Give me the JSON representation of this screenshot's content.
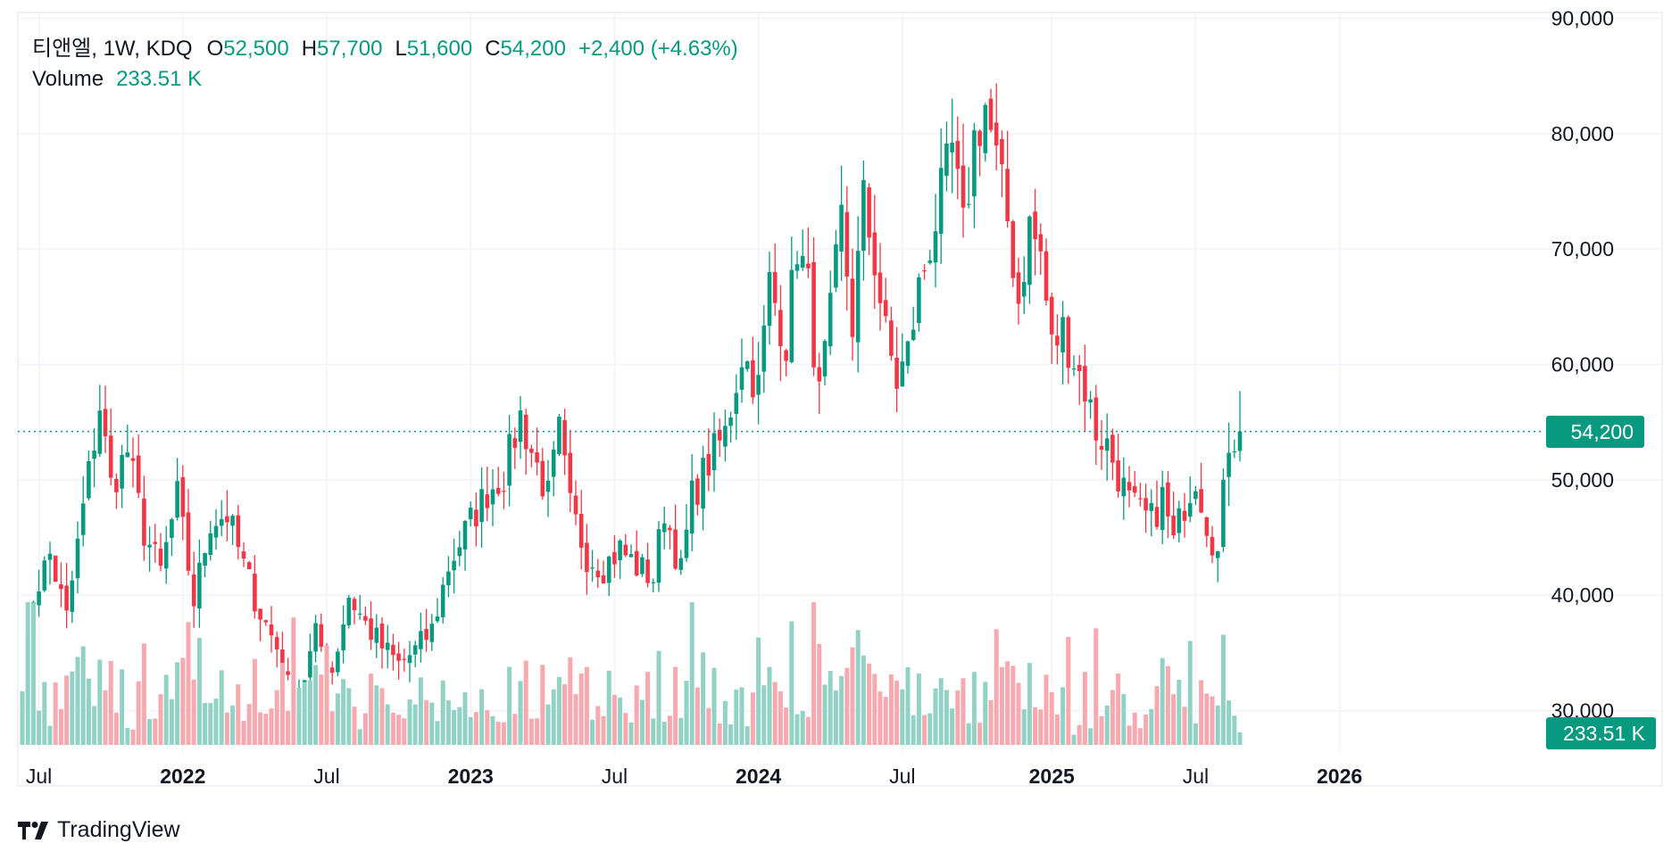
{
  "legend": {
    "symbol": "티앤엘, 1W, KDQ",
    "o_label": "O",
    "o_value": "52,500",
    "h_label": "H",
    "h_value": "57,700",
    "l_label": "L",
    "l_value": "51,600",
    "c_label": "C",
    "c_value": "54,200",
    "change": "+2,400 (+4.63%)",
    "volume_label": "Volume",
    "volume_value": "233.51 K"
  },
  "price_badge": "54,200",
  "volume_badge": "233.51 K",
  "brand": "TradingView",
  "colors": {
    "up": "#089981",
    "down": "#f23645",
    "up_volume": "#92d2c5",
    "down_volume": "#f7a9b0",
    "grid": "#f0f3fa"
  },
  "chart_data": {
    "type": "candlestick",
    "interval": "1W",
    "y_axis": {
      "ticks": [
        30000,
        40000,
        50000,
        60000,
        70000,
        80000,
        90000
      ],
      "tick_labels": [
        "30,000",
        "40,000",
        "50,000",
        "60,000",
        "70,000",
        "80,000",
        "90,000"
      ],
      "range": [
        26800,
        90500
      ]
    },
    "x_axis": {
      "labels": [
        {
          "text": "Jul",
          "bold": false,
          "week": 3
        },
        {
          "text": "2022",
          "bold": true,
          "week": 29
        },
        {
          "text": "Jul",
          "bold": false,
          "week": 55
        },
        {
          "text": "2023",
          "bold": true,
          "week": 81
        },
        {
          "text": "Jul",
          "bold": false,
          "week": 107
        },
        {
          "text": "2024",
          "bold": true,
          "week": 133
        },
        {
          "text": "Jul",
          "bold": false,
          "week": 159
        },
        {
          "text": "2025",
          "bold": true,
          "week": 186
        },
        {
          "text": "Jul",
          "bold": false,
          "week": 212
        },
        {
          "text": "2026",
          "bold": true,
          "week": 238
        }
      ]
    },
    "last_close": 54200,
    "last_volume_k": 233.51,
    "anchors": [
      [
        0,
        31000
      ],
      [
        2,
        40000
      ],
      [
        5,
        43500
      ],
      [
        8,
        38000
      ],
      [
        11,
        47500
      ],
      [
        14,
        56500
      ],
      [
        16,
        49500
      ],
      [
        19,
        52500
      ],
      [
        22,
        45500
      ],
      [
        25,
        42000
      ],
      [
        28,
        48500
      ],
      [
        31,
        39500
      ],
      [
        34,
        46500
      ],
      [
        37,
        47000
      ],
      [
        40,
        42500
      ],
      [
        43,
        38500
      ],
      [
        46,
        35500
      ],
      [
        49,
        30500
      ],
      [
        51,
        33000
      ],
      [
        53,
        36500
      ],
      [
        56,
        33500
      ],
      [
        59,
        40000
      ],
      [
        62,
        37500
      ],
      [
        65,
        35500
      ],
      [
        68,
        34000
      ],
      [
        71,
        35200
      ],
      [
        74,
        37000
      ],
      [
        77,
        42500
      ],
      [
        80,
        45500
      ],
      [
        84,
        49000
      ],
      [
        87,
        50500
      ],
      [
        90,
        55500
      ],
      [
        92,
        52500
      ],
      [
        95,
        48500
      ],
      [
        97,
        54000
      ],
      [
        99,
        47500
      ],
      [
        102,
        43500
      ],
      [
        105,
        42500
      ],
      [
        108,
        44000
      ],
      [
        111,
        42500
      ],
      [
        114,
        41500
      ],
      [
        116,
        47500
      ],
      [
        119,
        42000
      ],
      [
        121,
        48500
      ],
      [
        124,
        51500
      ],
      [
        127,
        54000
      ],
      [
        130,
        61000
      ],
      [
        133,
        58000
      ],
      [
        135,
        67000
      ],
      [
        138,
        62000
      ],
      [
        140,
        70500
      ],
      [
        142,
        66500
      ],
      [
        144,
        57000
      ],
      [
        146,
        64000
      ],
      [
        148,
        72500
      ],
      [
        150,
        63500
      ],
      [
        152,
        74000
      ],
      [
        154,
        69000
      ],
      [
        156,
        62500
      ],
      [
        158,
        58500
      ],
      [
        160,
        61000
      ],
      [
        162,
        66500
      ],
      [
        164,
        70500
      ],
      [
        166,
        74500
      ],
      [
        168,
        78500
      ],
      [
        170,
        71500
      ],
      [
        172,
        79500
      ],
      [
        174,
        82500
      ],
      [
        176,
        77500
      ],
      [
        178,
        72500
      ],
      [
        180,
        65500
      ],
      [
        182,
        72000
      ],
      [
        184,
        69500
      ],
      [
        186,
        61500
      ],
      [
        188,
        63000
      ],
      [
        190,
        60500
      ],
      [
        192,
        58000
      ],
      [
        194,
        54200
      ],
      [
        196,
        53000
      ],
      [
        198,
        50500
      ],
      [
        200,
        48000
      ],
      [
        202,
        47000
      ],
      [
        204,
        46500
      ],
      [
        206,
        48500
      ],
      [
        208,
        44500
      ],
      [
        210,
        48000
      ],
      [
        212,
        50500
      ],
      [
        214,
        46500
      ],
      [
        216,
        43500
      ],
      [
        218,
        53500
      ],
      [
        220,
        54200
      ]
    ]
  }
}
